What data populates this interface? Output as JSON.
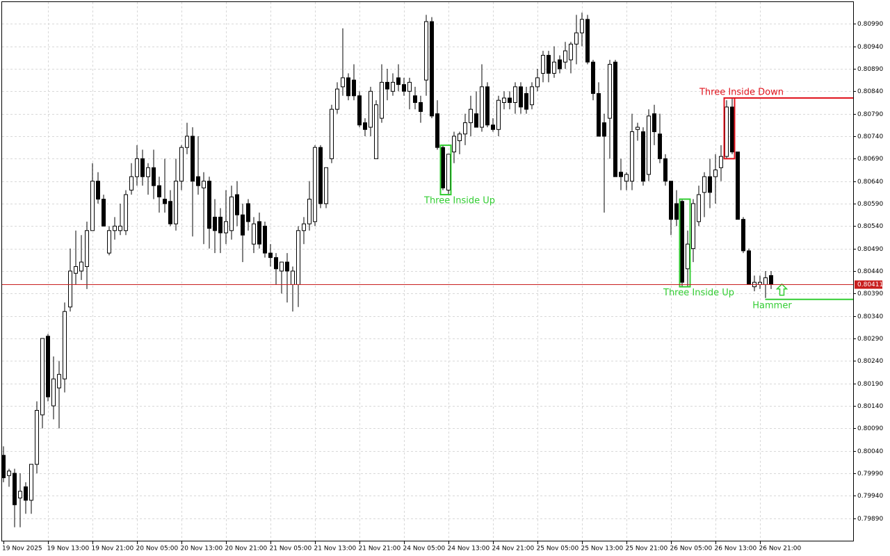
{
  "chart_data": {
    "type": "candlestick",
    "categories": [
      "19 Nov 2025",
      null,
      null,
      null,
      null,
      null,
      null,
      null,
      "19 Nov 13:00",
      null,
      null,
      null,
      null,
      null,
      null,
      null,
      "19 Nov 21:00",
      null,
      null,
      null,
      null,
      null,
      null,
      null,
      "20 Nov 05:00",
      null,
      null,
      null,
      null,
      null,
      null,
      null,
      "20 Nov 13:00",
      null,
      null,
      null,
      null,
      null,
      null,
      null,
      "20 Nov 21:00",
      null,
      null,
      null,
      null,
      null,
      null,
      null,
      "21 Nov 05:00",
      null,
      null,
      null,
      null,
      null,
      null,
      null,
      "21 Nov 13:00",
      null,
      null,
      null,
      null,
      null,
      null,
      null,
      "21 Nov 21:00",
      null,
      null,
      null,
      null,
      null,
      null,
      null,
      "24 Nov 05:00",
      null,
      null,
      null,
      null,
      null,
      null,
      null,
      "24 Nov 13:00",
      null,
      null,
      null,
      null,
      null,
      null,
      null,
      "24 Nov 21:00",
      null,
      null,
      null,
      null,
      null,
      null,
      null,
      "25 Nov 05:00",
      null,
      null,
      null,
      null,
      null,
      null,
      null,
      "25 Nov 13:00",
      null,
      null,
      null,
      null,
      null,
      null,
      null,
      "25 Nov 21:00",
      null,
      null,
      null,
      null,
      null,
      null,
      null,
      "26 Nov 05:00",
      null,
      null,
      null,
      null,
      null,
      null,
      null,
      "26 Nov 13:00",
      null,
      null,
      null,
      null,
      null,
      null,
      null,
      "26 Nov 21:00",
      null,
      null
    ],
    "open": [
      0.8003,
      0.79985,
      0.7999,
      0.79935,
      0.7996,
      0.7993,
      0.8001,
      0.8012,
      0.80295,
      0.8014,
      0.8018,
      0.802,
      0.8036,
      0.80435,
      0.8044,
      0.8045,
      0.8053,
      0.8064,
      0.806,
      0.8048,
      0.8053,
      0.8053,
      0.8053,
      0.8062,
      0.8065,
      0.8069,
      0.8065,
      0.8067,
      0.8063,
      0.806,
      0.80595,
      0.80545,
      0.8064,
      0.80715,
      0.8074,
      0.8065,
      0.80625,
      0.8064,
      0.8056,
      0.8056,
      0.80525,
      0.8053,
      0.8061,
      0.80565,
      0.8059,
      0.805,
      0.8055,
      0.8054,
      0.8048,
      0.8047,
      0.8044,
      0.8046,
      0.8041,
      0.8041,
      0.8053,
      0.80545,
      0.8055,
      0.80715,
      0.8059,
      0.8069,
      0.808,
      0.8085,
      0.8087,
      0.80865,
      0.8083,
      0.8077,
      0.8076,
      0.8069,
      0.8078,
      0.8086,
      0.8084,
      0.8087,
      0.80855,
      0.8084,
      0.8083,
      0.80815,
      0.80865,
      0.80995,
      0.8079,
      0.80715,
      0.8062,
      0.80705,
      0.8073,
      0.80745,
      0.8077,
      0.8079,
      0.8076,
      0.8085,
      0.80765,
      0.80755,
      0.80815,
      0.80825,
      0.80815,
      0.8085,
      0.80835,
      0.8081,
      0.8085,
      0.8088,
      0.8092,
      0.8088,
      0.8091,
      0.80905,
      0.8091,
      0.80945,
      0.8097,
      0.81,
      0.80905,
      0.80835,
      0.8077,
      0.8078,
      0.80905,
      0.8066,
      0.8064,
      0.8064,
      0.80755,
      0.8075,
      0.80655,
      0.8079,
      0.80745,
      0.8069,
      0.8064,
      0.8059,
      0.80595,
      0.80445,
      0.8049,
      0.8055,
      0.80615,
      0.8065,
      0.8065,
      0.8067,
      0.80695,
      0.80805,
      0.80705,
      0.80555,
      0.80485,
      0.80405,
      0.8041,
      0.8041,
      0.8043
    ],
    "high": [
      0.8005,
      0.8,
      0.8,
      0.7999,
      0.7997,
      0.8001,
      0.8015,
      0.8029,
      0.803,
      0.8025,
      0.8024,
      0.8037,
      0.8049,
      0.8053,
      0.8052,
      0.8055,
      0.8068,
      0.8066,
      0.8061,
      0.8054,
      0.8056,
      0.8059,
      0.8062,
      0.8068,
      0.8072,
      0.8071,
      0.8068,
      0.8071,
      0.8065,
      0.8069,
      0.8062,
      0.8069,
      0.8072,
      0.8077,
      0.8076,
      0.8074,
      0.8066,
      0.8065,
      0.806,
      0.8058,
      0.8062,
      0.8063,
      0.8064,
      0.8059,
      0.806,
      0.8056,
      0.8057,
      0.8055,
      0.805,
      0.8048,
      0.8046,
      0.8048,
      0.8045,
      0.8054,
      0.8056,
      0.8064,
      0.8072,
      0.8072,
      0.8067,
      0.8081,
      0.8086,
      0.8098,
      0.8088,
      0.809,
      0.8084,
      0.8078,
      0.8085,
      0.8082,
      0.809,
      0.8089,
      0.8088,
      0.809,
      0.8087,
      0.8087,
      0.8085,
      0.8083,
      0.8101,
      0.81005,
      0.8082,
      0.8072,
      0.807,
      0.8075,
      0.8075,
      0.8079,
      0.8083,
      0.8084,
      0.809,
      0.8086,
      0.8078,
      0.8083,
      0.8084,
      0.8084,
      0.8086,
      0.8086,
      0.8085,
      0.8086,
      0.8089,
      0.8093,
      0.8093,
      0.8094,
      0.8092,
      0.8095,
      0.8095,
      0.8101,
      0.81015,
      0.8101,
      0.8091,
      0.8086,
      0.8079,
      0.8091,
      0.8091,
      0.8069,
      0.8066,
      0.8079,
      0.8077,
      0.8076,
      0.808,
      0.8081,
      0.8079,
      0.807,
      0.8064,
      0.8062,
      0.806,
      0.8053,
      0.806,
      0.8063,
      0.8066,
      0.8069,
      0.807,
      0.8072,
      0.8082,
      0.80825,
      0.80705,
      0.8056,
      0.8049,
      0.8043,
      0.8043,
      0.8044,
      0.8044
    ],
    "low": [
      0.7997,
      0.7996,
      0.7987,
      0.7987,
      0.799,
      0.799,
      0.7999,
      0.8009,
      0.8015,
      0.8011,
      0.8009,
      0.8017,
      0.8035,
      0.8041,
      0.8042,
      0.804,
      0.8053,
      0.8059,
      0.8054,
      0.80475,
      0.8051,
      0.8052,
      0.8052,
      0.8061,
      0.8063,
      0.8063,
      0.8061,
      0.806,
      0.8057,
      0.8057,
      0.8054,
      0.8053,
      0.8062,
      0.807,
      0.80517,
      0.8061,
      0.805,
      0.8049,
      0.8048,
      0.8048,
      0.805,
      0.8051,
      0.8054,
      0.8046,
      0.8053,
      0.8048,
      0.8049,
      0.8047,
      0.8045,
      0.8041,
      0.8039,
      0.8037,
      0.8035,
      0.8036,
      0.805,
      0.8053,
      0.8054,
      0.8058,
      0.8058,
      0.8068,
      0.8079,
      0.8083,
      0.8082,
      0.8082,
      0.8076,
      0.8074,
      0.8074,
      0.8069,
      0.8077,
      0.8082,
      0.8083,
      0.8084,
      0.8083,
      0.808,
      0.808,
      0.8077,
      0.8083,
      0.8078,
      0.8071,
      0.8062,
      0.8061,
      0.8068,
      0.807,
      0.8072,
      0.8074,
      0.8076,
      0.8075,
      0.8076,
      0.8075,
      0.8074,
      0.808,
      0.808,
      0.8079,
      0.8079,
      0.8079,
      0.808,
      0.8084,
      0.8086,
      0.8086,
      0.8087,
      0.8088,
      0.8089,
      0.8088,
      0.809,
      0.8094,
      0.809,
      0.8082,
      0.8074,
      0.8057,
      0.8069,
      0.8065,
      0.8062,
      0.8062,
      0.8062,
      0.8073,
      0.8063,
      0.8064,
      0.8072,
      0.8068,
      0.8063,
      0.8052,
      0.8054,
      0.80405,
      0.80405,
      0.8046,
      0.8054,
      0.8056,
      0.8058,
      0.8059,
      0.8064,
      0.8069,
      0.807,
      0.80555,
      0.8048,
      0.8041,
      0.80395,
      0.804,
      0.8038,
      0.804
    ],
    "close": [
      0.7998,
      0.79995,
      0.7992,
      0.7995,
      0.7993,
      0.8001,
      0.8013,
      0.8029,
      0.8016,
      0.802,
      0.8021,
      0.8035,
      0.8044,
      0.8045,
      0.8046,
      0.8053,
      0.8064,
      0.806,
      0.8054,
      0.8053,
      0.8054,
      0.8054,
      0.8061,
      0.8065,
      0.8069,
      0.8065,
      0.8067,
      0.8063,
      0.80605,
      0.8059,
      0.80545,
      0.8064,
      0.80715,
      0.8074,
      0.8064,
      0.8063,
      0.8064,
      0.80535,
      0.8053,
      0.80525,
      0.8055,
      0.80605,
      0.80565,
      0.8052,
      0.8055,
      0.80545,
      0.805,
      0.8048,
      0.8047,
      0.80445,
      0.8046,
      0.8044,
      0.8044,
      0.8053,
      0.80545,
      0.806,
      0.80715,
      0.8059,
      0.8067,
      0.808,
      0.80845,
      0.8087,
      0.8083,
      0.8083,
      0.80765,
      0.80755,
      0.8084,
      0.8081,
      0.8086,
      0.80845,
      0.8086,
      0.80855,
      0.8084,
      0.8086,
      0.80815,
      0.80795,
      0.80995,
      0.80785,
      0.80715,
      0.80625,
      0.807,
      0.8074,
      0.80745,
      0.8077,
      0.808,
      0.8076,
      0.8085,
      0.80765,
      0.80755,
      0.8082,
      0.80825,
      0.80815,
      0.8085,
      0.80805,
      0.808,
      0.8085,
      0.8087,
      0.8092,
      0.8088,
      0.80905,
      0.8089,
      0.8093,
      0.80945,
      0.8097,
      0.81,
      0.80905,
      0.80835,
      0.8074,
      0.8074,
      0.809,
      0.8065,
      0.8065,
      0.80655,
      0.8075,
      0.8076,
      0.8064,
      0.80785,
      0.8075,
      0.8069,
      0.8064,
      0.80555,
      0.80555,
      0.80415,
      0.805,
      0.8059,
      0.8061,
      0.8065,
      0.80615,
      0.80665,
      0.80695,
      0.80805,
      0.80705,
      0.80555,
      0.80485,
      0.8041,
      0.80415,
      0.80415,
      0.80425,
      0.80411
    ],
    "up_color": "#ffffff",
    "down_color": "#000000",
    "ylim": [
      0.7984,
      0.8104
    ],
    "yticks": [
      {
        "value": 0.7989,
        "label": "0.79890"
      },
      {
        "value": 0.7994,
        "label": "0.79940"
      },
      {
        "value": 0.7999,
        "label": "0.79990"
      },
      {
        "value": 0.8004,
        "label": "0.80040"
      },
      {
        "value": 0.8009,
        "label": "0.80090"
      },
      {
        "value": 0.8014,
        "label": "0.80140"
      },
      {
        "value": 0.8019,
        "label": "0.80190"
      },
      {
        "value": 0.8024,
        "label": "0.80240"
      },
      {
        "value": 0.8029,
        "label": "0.80290"
      },
      {
        "value": 0.8034,
        "label": "0.80340"
      },
      {
        "value": 0.8039,
        "label": "0.80390"
      },
      {
        "value": 0.8044,
        "label": "0.80440"
      },
      {
        "value": 0.8049,
        "label": "0.80490"
      },
      {
        "value": 0.8054,
        "label": "0.80540"
      },
      {
        "value": 0.8059,
        "label": "0.80590"
      },
      {
        "value": 0.8064,
        "label": "0.80640"
      },
      {
        "value": 0.8069,
        "label": "0.80690"
      },
      {
        "value": 0.8074,
        "label": "0.80740"
      },
      {
        "value": 0.8079,
        "label": "0.80790"
      },
      {
        "value": 0.8084,
        "label": "0.80840"
      },
      {
        "value": 0.8089,
        "label": "0.80890"
      },
      {
        "value": 0.8094,
        "label": "0.80940"
      },
      {
        "value": 0.8099,
        "label": "0.80990"
      }
    ],
    "grid": true,
    "current_price": 0.80411,
    "current_price_color": "#c81e1e",
    "patterns": [
      {
        "name": "Three Inside Up",
        "color": "#32cd32"
      },
      {
        "name": "Three Inside Up",
        "color": "#32cd32"
      },
      {
        "name": "Three Inside Down",
        "color": "#e0141e"
      },
      {
        "name": "Hammer",
        "color": "#32cd32"
      }
    ]
  }
}
